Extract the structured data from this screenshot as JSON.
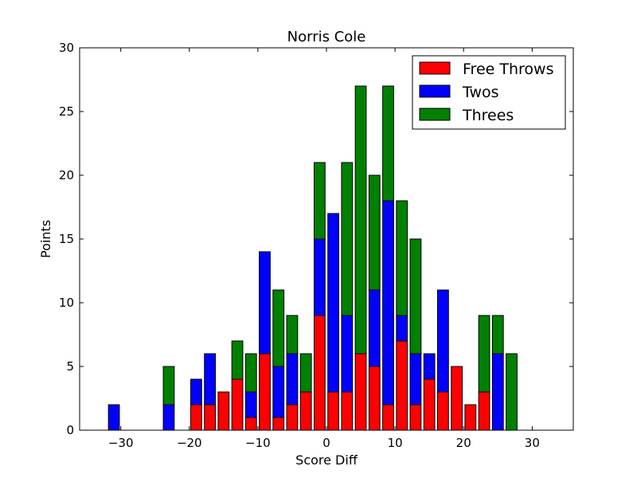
{
  "chart_data": {
    "type": "bar",
    "stacked": true,
    "title": "Norris Cole",
    "xlabel": "Score Diff",
    "ylabel": "Points",
    "xlim": [
      -36,
      36
    ],
    "ylim": [
      0,
      30
    ],
    "xticks": [
      -30,
      -20,
      -10,
      0,
      10,
      20,
      30
    ],
    "yticks": [
      0,
      5,
      10,
      15,
      20,
      25,
      30
    ],
    "bar_width": 1.6,
    "legend_position": "top-right",
    "x": [
      -35,
      -33,
      -31,
      -29,
      -27,
      -25,
      -23,
      -21,
      -19,
      -17,
      -15,
      -13,
      -11,
      -9,
      -7,
      -5,
      -3,
      -1,
      1,
      3,
      5,
      7,
      9,
      11,
      13,
      15,
      17,
      19,
      21,
      23,
      25,
      27,
      29,
      31,
      33,
      35
    ],
    "series": [
      {
        "name": "Free Throws",
        "color": "#ff0000",
        "values": [
          0,
          0,
          0,
          0,
          0,
          0,
          0,
          0,
          2,
          2,
          3,
          4,
          1,
          6,
          1,
          2,
          3,
          9,
          3,
          3,
          6,
          5,
          2,
          7,
          2,
          4,
          3,
          5,
          2,
          3,
          0,
          0,
          0,
          0,
          0,
          0
        ]
      },
      {
        "name": "Twos",
        "color": "#0000ff",
        "values": [
          0,
          0,
          2,
          0,
          0,
          0,
          2,
          0,
          2,
          4,
          0,
          0,
          2,
          8,
          4,
          4,
          0,
          6,
          14,
          6,
          0,
          6,
          16,
          2,
          4,
          2,
          8,
          0,
          0,
          0,
          6,
          0,
          0,
          0,
          0,
          0
        ]
      },
      {
        "name": "Threes",
        "color": "#008000",
        "values": [
          0,
          0,
          0,
          0,
          0,
          0,
          3,
          0,
          0,
          0,
          0,
          3,
          3,
          0,
          6,
          3,
          3,
          6,
          0,
          12,
          21,
          9,
          9,
          9,
          9,
          0,
          0,
          0,
          0,
          6,
          3,
          6,
          0,
          0,
          0,
          0
        ]
      }
    ]
  }
}
